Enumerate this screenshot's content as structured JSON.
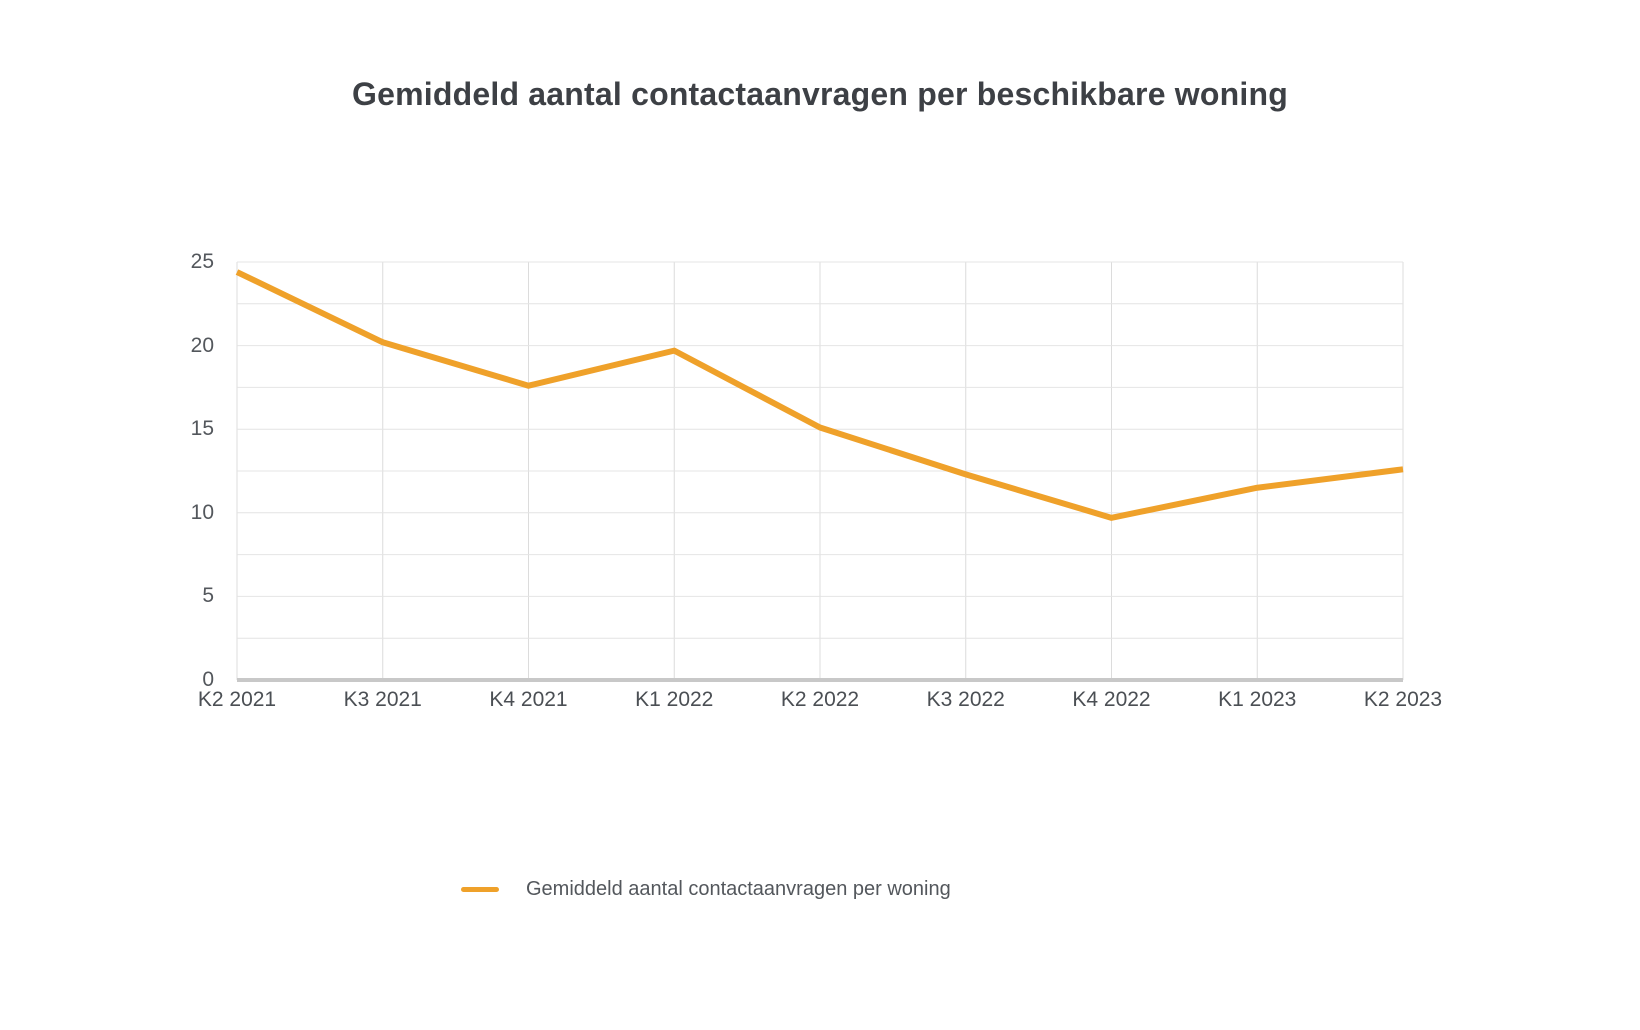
{
  "title": "Gemiddeld aantal contactaanvragen per beschikbare woning",
  "legend": {
    "label": "Gemiddeld aantal contactaanvragen per woning",
    "swatch": "line-swatch"
  },
  "colors": {
    "line": "#efa12a",
    "grid_horizontal": "#e4e4e4",
    "grid_vertical": "#dcdcdc",
    "baseline": "#c8c8c8",
    "title_text": "#3d4045",
    "axis_text": "#53575c"
  },
  "chart_data": {
    "type": "line",
    "title": "Gemiddeld aantal contactaanvragen per beschikbare woning",
    "categories": [
      "K2 2021",
      "K3 2021",
      "K4 2021",
      "K1 2022",
      "K2 2022",
      "K3 2022",
      "K4 2022",
      "K1 2023",
      "K2 2023"
    ],
    "series": [
      {
        "name": "Gemiddeld aantal contactaanvragen per woning",
        "values": [
          24.4,
          20.2,
          17.6,
          19.7,
          15.1,
          12.3,
          9.7,
          11.5,
          12.6
        ]
      }
    ],
    "xlabel": "",
    "ylabel": "",
    "ylim": [
      0,
      25
    ],
    "yticks": [
      0,
      5,
      10,
      15,
      20,
      25
    ],
    "grid_step": 2.5,
    "grid": "on",
    "legend_position": "bottom"
  }
}
